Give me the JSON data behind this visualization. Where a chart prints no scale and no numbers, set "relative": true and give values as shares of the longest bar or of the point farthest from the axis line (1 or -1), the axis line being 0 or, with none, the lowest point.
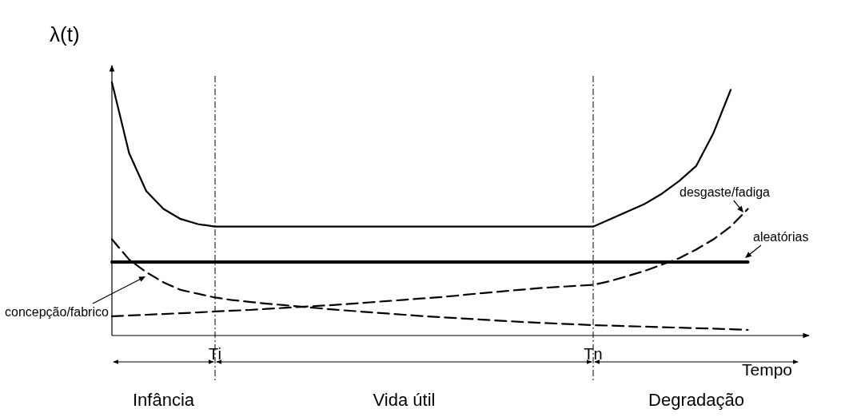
{
  "chart_data": {
    "type": "line",
    "relative": true,
    "ylabel": "λ(t)",
    "xlabel": "Tempo",
    "categories": [
      null,
      null,
      null,
      null,
      null,
      null,
      "Ti",
      null,
      null,
      null,
      null,
      null,
      null,
      null,
      null,
      null,
      null,
      null,
      null,
      null,
      null,
      null,
      null,
      null,
      null,
      null,
      null,
      null,
      "Tn",
      null,
      null,
      null,
      null,
      null,
      null,
      null,
      null,
      null,
      null,
      null,
      null
    ],
    "series": [
      {
        "color": "#000000",
        "line_style": "solid",
        "values": [
          1.0,
          0.72,
          0.57,
          0.5,
          0.46,
          0.44,
          0.43,
          0.43,
          0.43,
          0.43,
          0.43,
          0.43,
          0.43,
          0.43,
          0.43,
          0.43,
          0.43,
          0.43,
          0.43,
          0.43,
          0.43,
          0.43,
          0.43,
          0.43,
          0.43,
          0.43,
          0.43,
          0.43,
          0.43,
          0.46,
          0.49,
          0.52,
          0.56,
          0.61,
          0.67,
          0.8,
          0.97,
          null,
          null,
          null,
          null
        ]
      },
      {
        "name": "aleatórias",
        "color": "#000000",
        "line_style": "solid",
        "values": [
          0.29,
          0.29,
          0.29,
          0.29,
          0.29,
          0.29,
          0.29,
          0.29,
          0.29,
          0.29,
          0.29,
          0.29,
          0.29,
          0.29,
          0.29,
          0.29,
          0.29,
          0.29,
          0.29,
          0.29,
          0.29,
          0.29,
          0.29,
          0.29,
          0.29,
          0.29,
          0.29,
          0.29,
          0.29,
          0.29,
          0.29,
          0.29,
          0.29,
          0.29,
          0.29,
          0.29,
          0.29,
          0.29,
          null,
          null,
          null
        ]
      },
      {
        "name": "concepção/fabrico",
        "color": "#000000",
        "line_style": "dashed",
        "values": [
          0.38,
          0.3,
          0.25,
          0.21,
          0.18,
          0.165,
          0.15,
          0.14,
          0.133,
          0.126,
          0.12,
          0.114,
          0.108,
          0.102,
          0.097,
          0.092,
          0.087,
          0.082,
          0.077,
          0.073,
          0.069,
          0.065,
          0.061,
          0.057,
          0.053,
          0.05,
          0.047,
          0.044,
          0.041,
          0.039,
          0.037,
          0.035,
          0.033,
          0.031,
          0.029,
          0.027,
          0.025,
          0.022,
          null,
          null,
          null
        ]
      },
      {
        "name": "desgaste/fadiga",
        "color": "#000000",
        "line_style": "dashed",
        "values": [
          0.076,
          0.079,
          0.082,
          0.085,
          0.088,
          0.091,
          0.095,
          0.098,
          0.101,
          0.105,
          0.109,
          0.113,
          0.117,
          0.121,
          0.126,
          0.131,
          0.136,
          0.141,
          0.146,
          0.151,
          0.157,
          0.164,
          0.17,
          0.176,
          0.182,
          0.188,
          0.192,
          0.196,
          0.2,
          0.215,
          0.235,
          0.255,
          0.28,
          0.305,
          0.34,
          0.38,
          0.43,
          0.5,
          null,
          null,
          null
        ]
      }
    ],
    "ref_lines": [
      {
        "axis": "x",
        "value": "Ti",
        "label": null,
        "line_style": "dashdot"
      },
      {
        "axis": "x",
        "value": "Tn",
        "label": null,
        "line_style": "dashdot"
      }
    ],
    "annotations": [
      "Infância",
      "Vida útil",
      "Degradação"
    ]
  }
}
